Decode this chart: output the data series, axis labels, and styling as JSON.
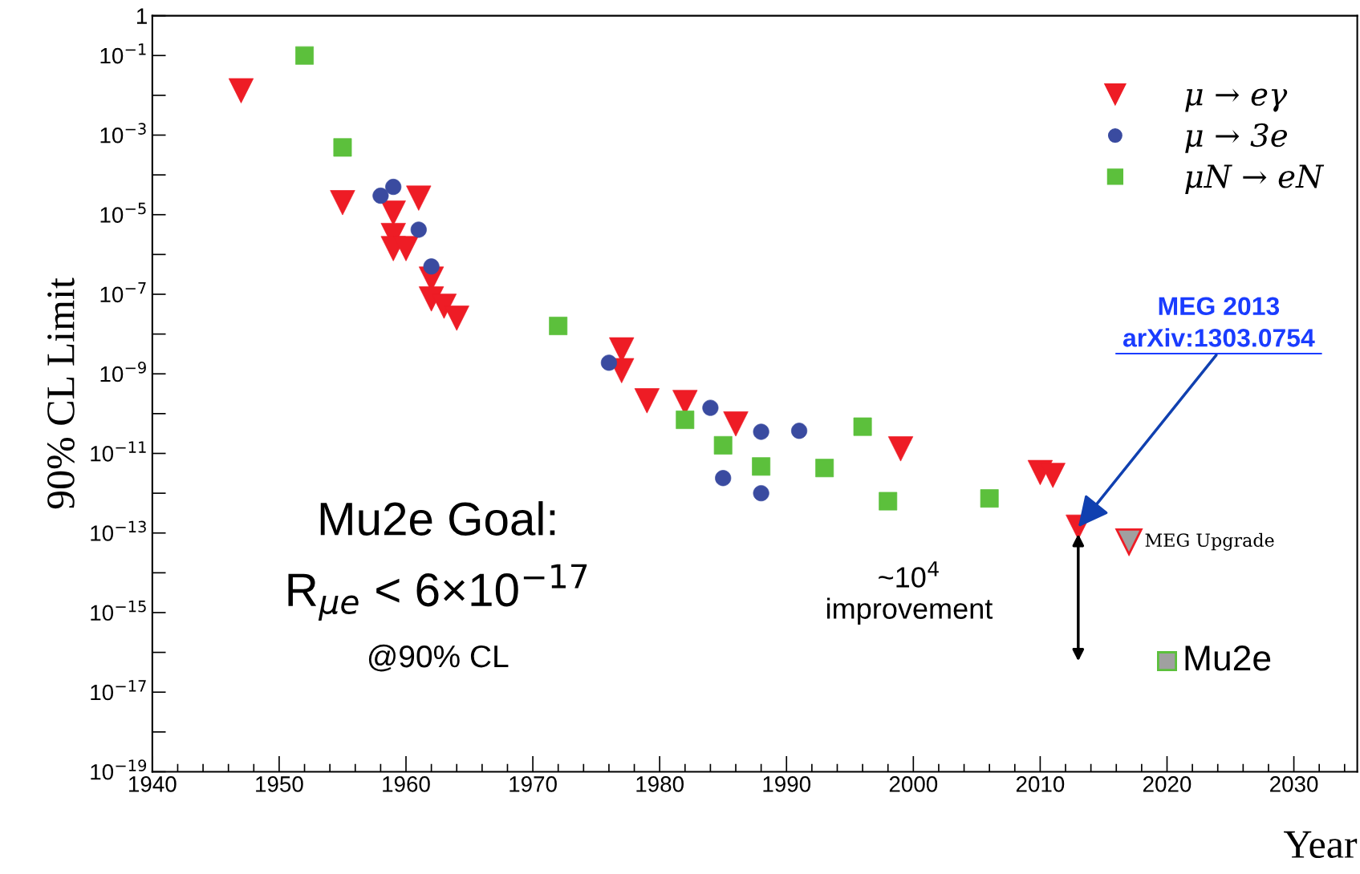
{
  "chart_data": {
    "type": "scatter",
    "xlabel": "Year",
    "ylabel": "90% CL Limit",
    "log": "y",
    "grid": false,
    "legend": "top right",
    "xlim": [
      1940,
      2035
    ],
    "xticks": [
      1940,
      {
        "value": 1942,
        "label": null
      },
      {
        "value": 1944,
        "label": null
      },
      {
        "value": 1946,
        "label": null
      },
      {
        "value": 1948,
        "label": null
      },
      1950,
      {
        "value": 1952,
        "label": null
      },
      {
        "value": 1954,
        "label": null
      },
      {
        "value": 1956,
        "label": null
      },
      {
        "value": 1958,
        "label": null
      },
      1960,
      {
        "value": 1962,
        "label": null
      },
      {
        "value": 1964,
        "label": null
      },
      {
        "value": 1966,
        "label": null
      },
      {
        "value": 1968,
        "label": null
      },
      1970,
      {
        "value": 1972,
        "label": null
      },
      {
        "value": 1974,
        "label": null
      },
      {
        "value": 1976,
        "label": null
      },
      {
        "value": 1978,
        "label": null
      },
      1980,
      {
        "value": 1982,
        "label": null
      },
      {
        "value": 1984,
        "label": null
      },
      {
        "value": 1986,
        "label": null
      },
      {
        "value": 1988,
        "label": null
      },
      1990,
      {
        "value": 1992,
        "label": null
      },
      {
        "value": 1994,
        "label": null
      },
      {
        "value": 1996,
        "label": null
      },
      {
        "value": 1998,
        "label": null
      },
      2000,
      {
        "value": 2002,
        "label": null
      },
      {
        "value": 2004,
        "label": null
      },
      {
        "value": 2006,
        "label": null
      },
      {
        "value": 2008,
        "label": null
      },
      2010,
      {
        "value": 2012,
        "label": null
      },
      {
        "value": 2014,
        "label": null
      },
      {
        "value": 2016,
        "label": null
      },
      {
        "value": 2018,
        "label": null
      },
      2020,
      {
        "value": 2022,
        "label": null
      },
      {
        "value": 2024,
        "label": null
      },
      {
        "value": 2026,
        "label": null
      },
      {
        "value": 2028,
        "label": null
      },
      2030,
      {
        "value": 2032,
        "label": null
      },
      {
        "value": 2034,
        "label": null
      }
    ],
    "ylim": [
      1e-19,
      1
    ],
    "yticks": [
      {
        "value": 1e-19,
        "label": "10$^{−19}$"
      },
      {
        "value": 1e-17,
        "label": "10$^{−17}$"
      },
      {
        "value": 1e-15,
        "label": "10$^{−15}$"
      },
      {
        "value": 1e-13,
        "label": "10$^{−13}$"
      },
      {
        "value": 1e-11,
        "label": "10$^{−11}$"
      },
      {
        "value": 1e-09,
        "label": "10$^{−9}$"
      },
      {
        "value": 1e-07,
        "label": "10$^{−7}$"
      },
      {
        "value": 1e-05,
        "label": "10$^{−5}$"
      },
      {
        "value": 0.001,
        "label": "10$^{−3}$"
      },
      {
        "value": 0.1,
        "label": "10$^{−1}$"
      },
      1
    ],
    "series": [
      {
        "name": "μ → eγ",
        "color": "#ee1c25",
        "marker": "triangle",
        "x": [
          1947,
          1955,
          1959,
          1959,
          1959,
          1960,
          1961,
          1962,
          1962,
          1963,
          1964,
          1977,
          1977,
          1979,
          1982,
          1986,
          1999,
          2010,
          2011,
          2013
        ],
        "values": [
          0.013,
          2e-05,
          1.1e-05,
          3e-06,
          1.4e-06,
          1.4e-06,
          2.6e-05,
          2.4e-07,
          7.6e-08,
          5e-08,
          2.5e-08,
          4e-09,
          1.2e-09,
          2.1e-10,
          1.9e-10,
          5.5e-11,
          1.3e-11,
          3.3e-12,
          2.8e-12,
          1.4e-13
        ]
      },
      {
        "name": "μ → 3e",
        "color": "#3a4ba0",
        "marker": "circle",
        "x": [
          1958,
          1959,
          1961,
          1962,
          1976,
          1984,
          1988,
          1991,
          1985,
          1988
        ],
        "values": [
          3e-05,
          5e-05,
          4.2e-06,
          5e-07,
          1.9e-09,
          1.4e-10,
          3.5e-11,
          3.7e-11,
          2.4e-12,
          1e-12
        ]
      },
      {
        "name": "μN → eN",
        "color": "#5cc03c",
        "marker": "square",
        "x": [
          1952,
          1955,
          1972,
          1982,
          1985,
          1988,
          1993,
          1996,
          1998,
          2006
        ],
        "values": [
          0.1,
          0.00049,
          1.6e-08,
          7e-11,
          1.6e-11,
          4.7e-12,
          4.3e-12,
          4.7e-11,
          6.3e-13,
          7.4e-13
        ]
      },
      {
        "name": "MEG Upgrade",
        "color": "#a0a0a0",
        "marker": "triangle",
        "x": [
          2017
        ],
        "values": [
          6e-14
        ]
      },
      {
        "name": "Mu2e",
        "color": "#a0a0a0",
        "marker": "square",
        "x": [
          2020
        ],
        "values": [
          6e-17
        ]
      }
    ],
    "annotations": [
      "MEG 2013",
      {
        "text": "arXiv:1303.0754",
        "x": 2013,
        "y": 1.4e-13
      },
      "Mu2e Goal:",
      "R$_{μe}$ < 6×10$^{−17}$",
      "@90% CL",
      "~10$^{4}$\nimprovement"
    ]
  }
}
